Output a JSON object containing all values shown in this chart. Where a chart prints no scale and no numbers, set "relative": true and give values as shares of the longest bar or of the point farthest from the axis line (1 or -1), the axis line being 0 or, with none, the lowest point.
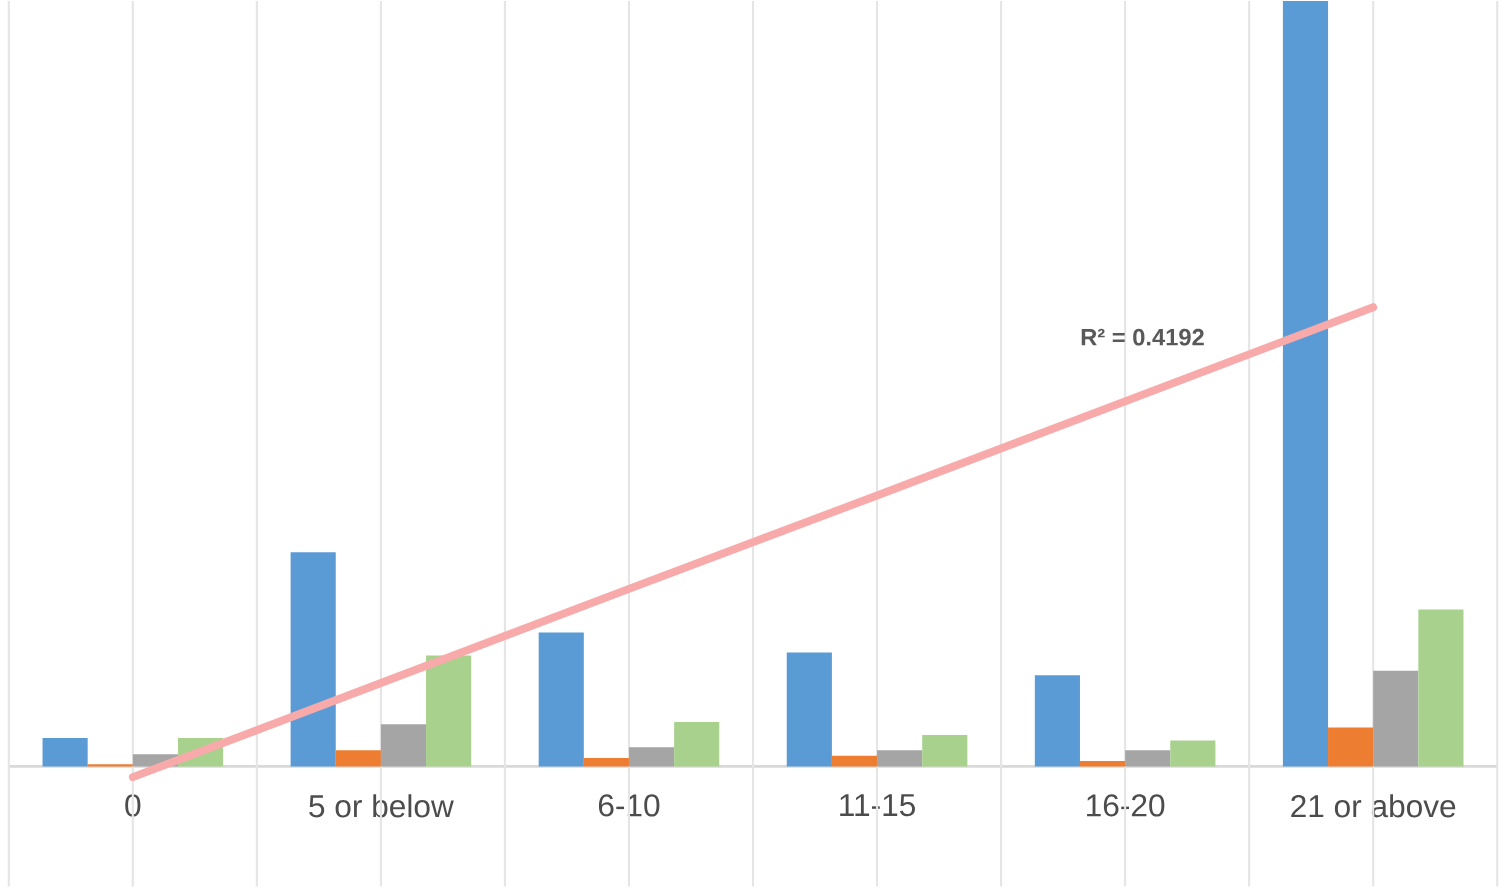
{
  "chart_data": {
    "type": "bar",
    "relative": true,
    "grid": true,
    "categories": [
      "0",
      "5 or below",
      "6-10",
      "11-15",
      "16-20",
      "21 or above"
    ],
    "series": [
      {
        "color": "#5b9bd5",
        "values": [
          0.037,
          0.28,
          0.175,
          0.149,
          0.119,
          1
        ]
      },
      {
        "color": "#ed7d31",
        "values": [
          0.003,
          0.021,
          0.011,
          0.014,
          0.007,
          0.051
        ]
      },
      {
        "color": "#a5a5a5",
        "values": [
          0.016,
          0.055,
          0.025,
          0.021,
          0.021,
          0.125
        ]
      },
      {
        "color": "#a9d18e",
        "values": [
          0.037,
          0.145,
          0.058,
          0.041,
          0.034,
          0.205
        ]
      },
      {
        "type": "line",
        "color": "#f8aaaa",
        "values": [
          -0.014,
          0.109,
          0.232,
          0.354,
          0.477,
          0.6
        ]
      }
    ],
    "annotations": [
      "R² = 0.4192"
    ]
  }
}
